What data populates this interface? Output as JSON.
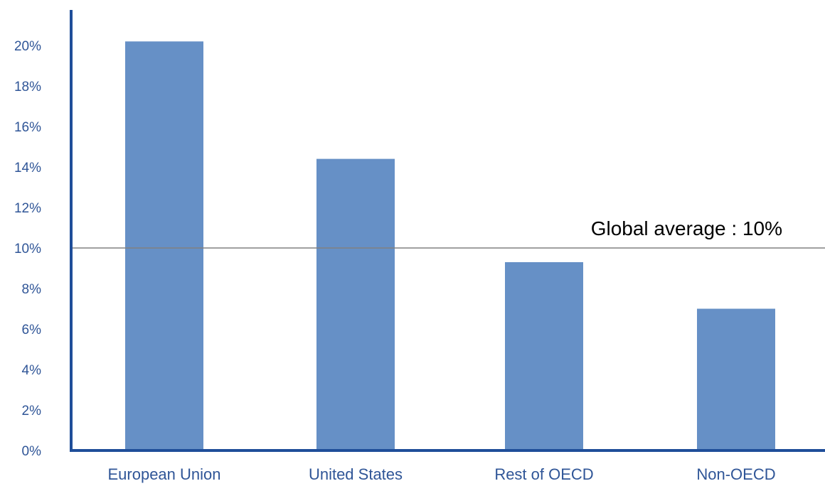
{
  "chart_data": {
    "type": "bar",
    "categories": [
      "European Union",
      "United States",
      "Rest of OECD",
      "Non-OECD"
    ],
    "values": [
      20.2,
      14.4,
      9.3,
      7.0
    ],
    "ylim": [
      0,
      20
    ],
    "yticks": [
      0,
      2,
      4,
      6,
      8,
      10,
      12,
      14,
      16,
      18,
      20
    ],
    "ytick_format": "{v}%",
    "grid": false,
    "legend": "none",
    "reference_line": {
      "value": 10,
      "label": "Global average : 10%"
    }
  },
  "colors": {
    "bar": "#6690c6",
    "axis": "#1f4e99",
    "tick_text": "#2f5597",
    "reference_line": "#808080",
    "reference_text": "#000000"
  }
}
